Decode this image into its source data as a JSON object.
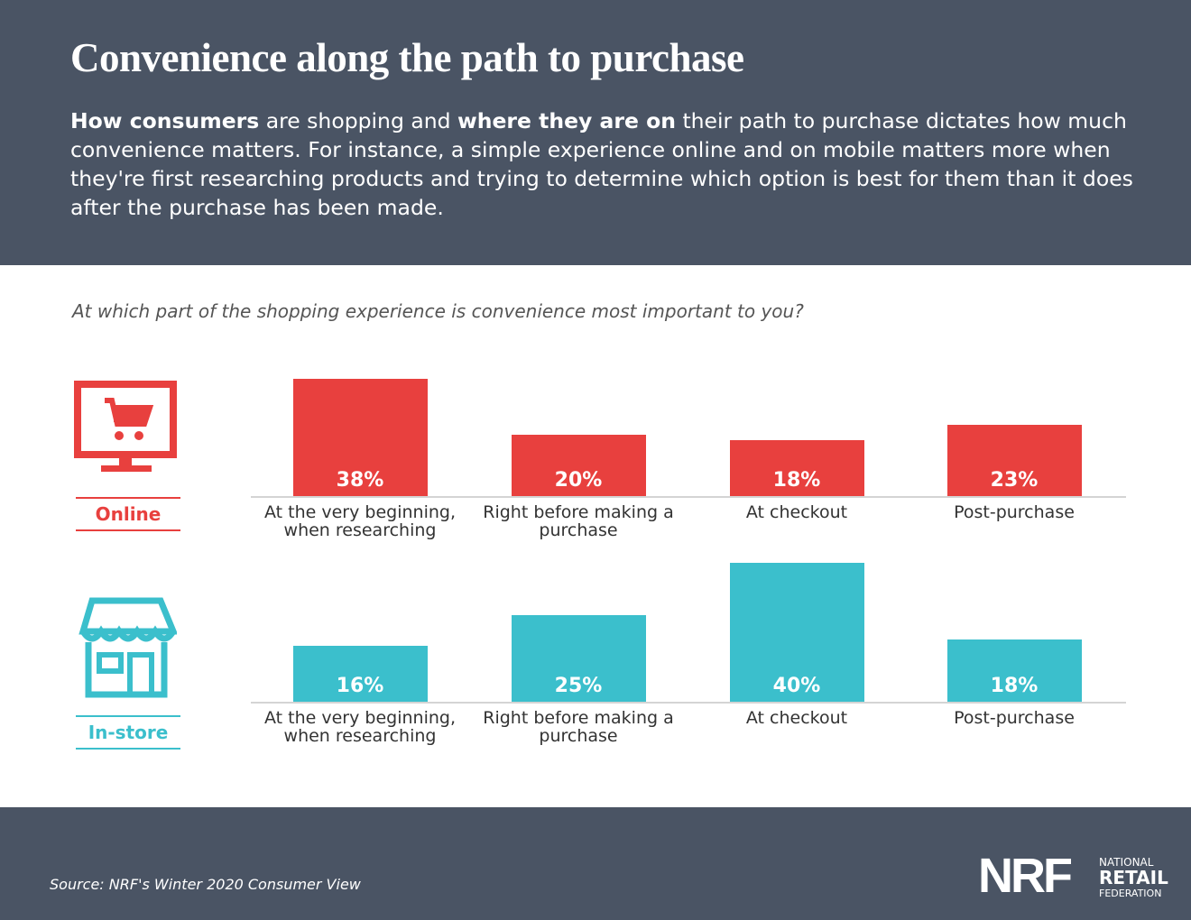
{
  "header": {
    "title": "Convenience along the path to purchase",
    "intro": [
      {
        "text": "How consumers",
        "bold": true
      },
      {
        "text": " are shopping and ",
        "bold": false
      },
      {
        "text": "where they are on",
        "bold": true
      },
      {
        "text": " their path to purchase dictates how much convenience matters. For instance, a simple experience online and on mobile matters more when they're first researching products and trying to determine which option is best for them than it does after the purchase has been made.",
        "bold": false
      }
    ]
  },
  "question": "At which part of the shopping experience is convenience most important to you?",
  "chart_data": [
    {
      "type": "bar",
      "label": "Online",
      "color": "#e8403e",
      "categories": [
        "At the very beginning, when researching",
        "Right before making a purchase",
        "At checkout",
        "Post-purchase"
      ],
      "values": [
        38,
        20,
        18,
        23
      ],
      "value_labels": [
        "38%",
        "20%",
        "18%",
        "23%"
      ]
    },
    {
      "type": "bar",
      "label": "In-store",
      "color": "#3bbfcc",
      "categories": [
        "At the very beginning, when researching",
        "Right before making a purchase",
        "At checkout",
        "Post-purchase"
      ],
      "values": [
        16,
        25,
        40,
        18
      ],
      "value_labels": [
        "16%",
        "25%",
        "40%",
        "18%"
      ]
    }
  ],
  "footer": {
    "source": "Source: NRF's Winter 2020 Consumer View",
    "logo": {
      "mark": "NRF",
      "line1": "NATIONAL",
      "line2": "RETAIL",
      "line3": "FEDERATION"
    }
  }
}
